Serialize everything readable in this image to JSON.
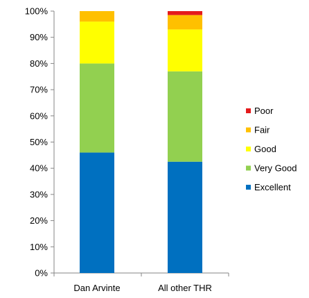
{
  "chart_data": {
    "type": "bar",
    "stacked": true,
    "categories": [
      "Dan Arvinte",
      "All other THR"
    ],
    "series": [
      {
        "name": "Excellent",
        "color": "#0070C0",
        "values": [
          46,
          42.5
        ]
      },
      {
        "name": "Very Good",
        "color": "#92D050",
        "values": [
          34,
          34.5
        ]
      },
      {
        "name": "Good",
        "color": "#FFFF00",
        "values": [
          16,
          16
        ]
      },
      {
        "name": "Fair",
        "color": "#FFC000",
        "values": [
          4,
          5.5
        ]
      },
      {
        "name": "Poor",
        "color": "#E41A1C",
        "values": [
          0,
          1.5
        ]
      }
    ],
    "title": "",
    "xlabel": "",
    "ylabel": "",
    "ylim": [
      0,
      100
    ],
    "yticks": [
      "0%",
      "10%",
      "20%",
      "30%",
      "40%",
      "50%",
      "60%",
      "70%",
      "80%",
      "90%",
      "100%"
    ],
    "legend": {
      "placement": "right",
      "order": [
        "Poor",
        "Fair",
        "Good",
        "Very Good",
        "Excellent"
      ]
    },
    "grid": false
  }
}
